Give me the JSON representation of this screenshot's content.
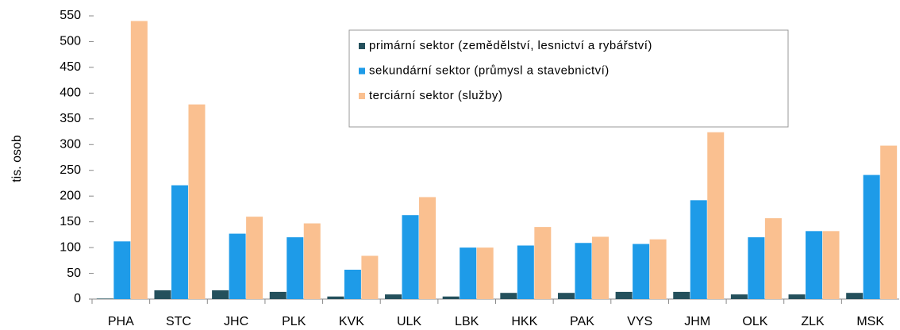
{
  "chart_data": {
    "type": "bar",
    "y_label": "tis. osob",
    "categories": [
      "PHA",
      "STC",
      "JHC",
      "PLK",
      "KVK",
      "ULK",
      "LBK",
      "HKK",
      "PAK",
      "VYS",
      "JHM",
      "OLK",
      "ZLK",
      "MSK"
    ],
    "series": [
      {
        "name": "primární sektor (zemědělství, lesnictví a rybářství)",
        "color": "#24505c",
        "values": [
          1,
          17,
          17,
          14,
          5,
          9,
          5,
          12,
          12,
          14,
          14,
          9,
          9,
          12
        ]
      },
      {
        "name": "sekundární sektor (průmysl a stavebnictví)",
        "color": "#1e9be8",
        "values": [
          112,
          221,
          127,
          120,
          57,
          163,
          100,
          104,
          109,
          107,
          192,
          120,
          132,
          241
        ]
      },
      {
        "name": "terciární sektor (služby)",
        "color": "#fac090",
        "values": [
          540,
          378,
          160,
          147,
          84,
          198,
          100,
          140,
          121,
          116,
          324,
          157,
          132,
          298
        ]
      }
    ],
    "ylim": [
      0,
      550
    ],
    "yticks": [
      0,
      50,
      100,
      150,
      200,
      250,
      300,
      350,
      400,
      450,
      500,
      550
    ],
    "grid": false,
    "legend": "top-right"
  }
}
